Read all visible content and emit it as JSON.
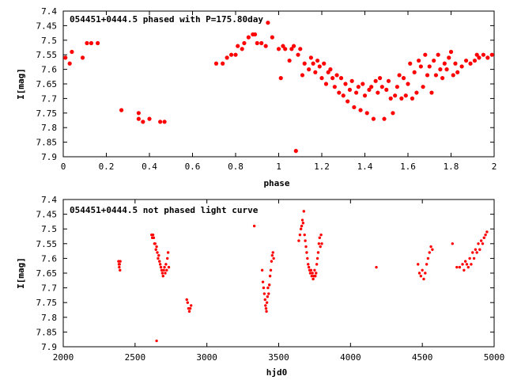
{
  "colors": {
    "series": "#ff0000",
    "axis": "#000000",
    "background": "#ffffff"
  },
  "chart_data": [
    {
      "type": "scatter",
      "title": "054451+0444.5 phased with P=175.80day",
      "xlabel": "phase",
      "ylabel": "I[mag]",
      "xlim": [
        0,
        2
      ],
      "ylim": [
        7.4,
        7.9
      ],
      "y_inverted": true,
      "grid": false,
      "legend": "none",
      "marker": "large-dot",
      "xticks": [
        0,
        0.2,
        0.4,
        0.6,
        0.8,
        1,
        1.2,
        1.4,
        1.6,
        1.8,
        2
      ],
      "xtick_labels": [
        "0",
        "0.2",
        "0.4",
        "0.6",
        "0.8",
        "1",
        "1.2",
        "1.4",
        "1.6",
        "1.8",
        "2"
      ],
      "yticks": [
        7.4,
        7.45,
        7.5,
        7.55,
        7.6,
        7.65,
        7.7,
        7.75,
        7.8,
        7.85,
        7.9
      ],
      "ytick_labels": [
        "7.4",
        "7.45",
        "7.5",
        "7.55",
        "7.6",
        "7.65",
        "7.7",
        "7.75",
        "7.8",
        "7.85",
        "7.9"
      ],
      "points": [
        [
          0.01,
          7.56
        ],
        [
          0.03,
          7.58
        ],
        [
          0.04,
          7.54
        ],
        [
          0.09,
          7.56
        ],
        [
          0.11,
          7.51
        ],
        [
          0.13,
          7.51
        ],
        [
          0.16,
          7.51
        ],
        [
          0.27,
          7.74
        ],
        [
          0.35,
          7.75
        ],
        [
          0.35,
          7.77
        ],
        [
          0.37,
          7.78
        ],
        [
          0.4,
          7.77
        ],
        [
          0.45,
          7.78
        ],
        [
          0.47,
          7.78
        ],
        [
          0.71,
          7.58
        ],
        [
          0.74,
          7.58
        ],
        [
          0.76,
          7.56
        ],
        [
          0.78,
          7.55
        ],
        [
          0.8,
          7.55
        ],
        [
          0.81,
          7.52
        ],
        [
          0.83,
          7.53
        ],
        [
          0.84,
          7.51
        ],
        [
          0.86,
          7.49
        ],
        [
          0.88,
          7.48
        ],
        [
          0.89,
          7.48
        ],
        [
          0.9,
          7.51
        ],
        [
          0.92,
          7.51
        ],
        [
          0.94,
          7.52
        ],
        [
          0.95,
          7.44
        ],
        [
          0.97,
          7.49
        ],
        [
          1.0,
          7.53
        ],
        [
          1.01,
          7.63
        ],
        [
          1.02,
          7.52
        ],
        [
          1.03,
          7.53
        ],
        [
          1.05,
          7.57
        ],
        [
          1.06,
          7.53
        ],
        [
          1.07,
          7.52
        ],
        [
          1.08,
          7.88
        ],
        [
          1.09,
          7.55
        ],
        [
          1.1,
          7.53
        ],
        [
          1.11,
          7.62
        ],
        [
          1.12,
          7.58
        ],
        [
          1.14,
          7.6
        ],
        [
          1.15,
          7.56
        ],
        [
          1.16,
          7.58
        ],
        [
          1.17,
          7.61
        ],
        [
          1.18,
          7.57
        ],
        [
          1.19,
          7.59
        ],
        [
          1.2,
          7.63
        ],
        [
          1.21,
          7.58
        ],
        [
          1.22,
          7.65
        ],
        [
          1.23,
          7.61
        ],
        [
          1.24,
          7.6
        ],
        [
          1.25,
          7.63
        ],
        [
          1.26,
          7.66
        ],
        [
          1.27,
          7.62
        ],
        [
          1.28,
          7.68
        ],
        [
          1.29,
          7.63
        ],
        [
          1.3,
          7.69
        ],
        [
          1.31,
          7.65
        ],
        [
          1.32,
          7.71
        ],
        [
          1.33,
          7.67
        ],
        [
          1.34,
          7.64
        ],
        [
          1.35,
          7.73
        ],
        [
          1.36,
          7.68
        ],
        [
          1.37,
          7.66
        ],
        [
          1.38,
          7.74
        ],
        [
          1.39,
          7.65
        ],
        [
          1.4,
          7.69
        ],
        [
          1.41,
          7.75
        ],
        [
          1.42,
          7.67
        ],
        [
          1.43,
          7.66
        ],
        [
          1.44,
          7.77
        ],
        [
          1.45,
          7.64
        ],
        [
          1.46,
          7.68
        ],
        [
          1.47,
          7.63
        ],
        [
          1.48,
          7.66
        ],
        [
          1.49,
          7.77
        ],
        [
          1.5,
          7.67
        ],
        [
          1.51,
          7.64
        ],
        [
          1.52,
          7.7
        ],
        [
          1.53,
          7.75
        ],
        [
          1.54,
          7.69
        ],
        [
          1.55,
          7.66
        ],
        [
          1.56,
          7.62
        ],
        [
          1.57,
          7.7
        ],
        [
          1.58,
          7.63
        ],
        [
          1.59,
          7.69
        ],
        [
          1.6,
          7.65
        ],
        [
          1.61,
          7.58
        ],
        [
          1.62,
          7.7
        ],
        [
          1.63,
          7.61
        ],
        [
          1.64,
          7.68
        ],
        [
          1.65,
          7.57
        ],
        [
          1.66,
          7.59
        ],
        [
          1.67,
          7.66
        ],
        [
          1.68,
          7.55
        ],
        [
          1.69,
          7.62
        ],
        [
          1.7,
          7.59
        ],
        [
          1.71,
          7.68
        ],
        [
          1.72,
          7.57
        ],
        [
          1.73,
          7.62
        ],
        [
          1.74,
          7.55
        ],
        [
          1.75,
          7.6
        ],
        [
          1.76,
          7.63
        ],
        [
          1.77,
          7.58
        ],
        [
          1.78,
          7.6
        ],
        [
          1.79,
          7.56
        ],
        [
          1.8,
          7.54
        ],
        [
          1.81,
          7.62
        ],
        [
          1.82,
          7.58
        ],
        [
          1.83,
          7.61
        ],
        [
          1.85,
          7.59
        ],
        [
          1.87,
          7.57
        ],
        [
          1.89,
          7.58
        ],
        [
          1.91,
          7.57
        ],
        [
          1.92,
          7.55
        ],
        [
          1.93,
          7.56
        ],
        [
          1.95,
          7.55
        ],
        [
          1.97,
          7.56
        ],
        [
          1.99,
          7.55
        ]
      ]
    },
    {
      "type": "scatter",
      "title": "054451+0444.5 not phased light curve",
      "xlabel": "hjd0",
      "ylabel": "I[mag]",
      "xlim": [
        2000,
        5000
      ],
      "ylim": [
        7.4,
        7.9
      ],
      "y_inverted": true,
      "grid": false,
      "legend": "none",
      "marker": "small-dot",
      "xticks": [
        2000,
        2500,
        3000,
        3500,
        4000,
        4500,
        5000
      ],
      "xtick_labels": [
        "2000",
        "2500",
        "3000",
        "3500",
        "4000",
        "4500",
        "5000"
      ],
      "yticks": [
        7.4,
        7.45,
        7.5,
        7.55,
        7.6,
        7.65,
        7.7,
        7.75,
        7.8,
        7.85,
        7.9
      ],
      "ytick_labels": [
        "7.4",
        "7.45",
        "7.5",
        "7.55",
        "7.6",
        "7.65",
        "7.7",
        "7.75",
        "7.8",
        "7.85",
        "7.9"
      ],
      "points": [
        [
          2385,
          7.61
        ],
        [
          2388,
          7.62
        ],
        [
          2390,
          7.63
        ],
        [
          2392,
          7.62
        ],
        [
          2395,
          7.64
        ],
        [
          2397,
          7.61
        ],
        [
          2615,
          7.52
        ],
        [
          2620,
          7.53
        ],
        [
          2625,
          7.52
        ],
        [
          2630,
          7.53
        ],
        [
          2635,
          7.55
        ],
        [
          2640,
          7.55
        ],
        [
          2645,
          7.57
        ],
        [
          2650,
          7.56
        ],
        [
          2655,
          7.58
        ],
        [
          2660,
          7.6
        ],
        [
          2665,
          7.59
        ],
        [
          2670,
          7.61
        ],
        [
          2675,
          7.62
        ],
        [
          2680,
          7.63
        ],
        [
          2685,
          7.64
        ],
        [
          2690,
          7.65
        ],
        [
          2695,
          7.66
        ],
        [
          2700,
          7.64
        ],
        [
          2705,
          7.63
        ],
        [
          2710,
          7.65
        ],
        [
          2715,
          7.62
        ],
        [
          2720,
          7.64
        ],
        [
          2725,
          7.6
        ],
        [
          2730,
          7.58
        ],
        [
          2735,
          7.63
        ],
        [
          2650,
          7.88
        ],
        [
          2860,
          7.74
        ],
        [
          2866,
          7.75
        ],
        [
          2872,
          7.77
        ],
        [
          2878,
          7.78
        ],
        [
          2884,
          7.77
        ],
        [
          2890,
          7.76
        ],
        [
          3330,
          7.49
        ],
        [
          3385,
          7.64
        ],
        [
          3390,
          7.68
        ],
        [
          3395,
          7.7
        ],
        [
          3400,
          7.72
        ],
        [
          3405,
          7.74
        ],
        [
          3408,
          7.76
        ],
        [
          3412,
          7.77
        ],
        [
          3415,
          7.78
        ],
        [
          3418,
          7.75
        ],
        [
          3422,
          7.73
        ],
        [
          3425,
          7.7
        ],
        [
          3430,
          7.72
        ],
        [
          3435,
          7.69
        ],
        [
          3440,
          7.66
        ],
        [
          3445,
          7.64
        ],
        [
          3450,
          7.61
        ],
        [
          3455,
          7.59
        ],
        [
          3460,
          7.58
        ],
        [
          3465,
          7.6
        ],
        [
          3640,
          7.54
        ],
        [
          3648,
          7.52
        ],
        [
          3655,
          7.5
        ],
        [
          3660,
          7.49
        ],
        [
          3665,
          7.47
        ],
        [
          3670,
          7.48
        ],
        [
          3675,
          7.44
        ],
        [
          3680,
          7.52
        ],
        [
          3685,
          7.54
        ],
        [
          3690,
          7.56
        ],
        [
          3695,
          7.58
        ],
        [
          3700,
          7.6
        ],
        [
          3705,
          7.62
        ],
        [
          3710,
          7.63
        ],
        [
          3715,
          7.64
        ],
        [
          3720,
          7.65
        ],
        [
          3725,
          7.64
        ],
        [
          3730,
          7.66
        ],
        [
          3735,
          7.65
        ],
        [
          3740,
          7.67
        ],
        [
          3745,
          7.66
        ],
        [
          3750,
          7.64
        ],
        [
          3755,
          7.66
        ],
        [
          3760,
          7.65
        ],
        [
          3765,
          7.62
        ],
        [
          3770,
          7.6
        ],
        [
          3775,
          7.58
        ],
        [
          3780,
          7.55
        ],
        [
          3785,
          7.53
        ],
        [
          3790,
          7.56
        ],
        [
          3795,
          7.52
        ],
        [
          3800,
          7.55
        ],
        [
          4180,
          7.63
        ],
        [
          4470,
          7.62
        ],
        [
          4480,
          7.65
        ],
        [
          4490,
          7.66
        ],
        [
          4500,
          7.64
        ],
        [
          4510,
          7.67
        ],
        [
          4520,
          7.65
        ],
        [
          4530,
          7.62
        ],
        [
          4540,
          7.6
        ],
        [
          4550,
          7.58
        ],
        [
          4560,
          7.56
        ],
        [
          4570,
          7.57
        ],
        [
          4710,
          7.55
        ],
        [
          4740,
          7.63
        ],
        [
          4760,
          7.63
        ],
        [
          4780,
          7.62
        ],
        [
          4790,
          7.64
        ],
        [
          4800,
          7.61
        ],
        [
          4810,
          7.62
        ],
        [
          4820,
          7.63
        ],
        [
          4830,
          7.6
        ],
        [
          4840,
          7.62
        ],
        [
          4850,
          7.58
        ],
        [
          4860,
          7.6
        ],
        [
          4870,
          7.57
        ],
        [
          4880,
          7.58
        ],
        [
          4890,
          7.55
        ],
        [
          4900,
          7.57
        ],
        [
          4910,
          7.54
        ],
        [
          4920,
          7.55
        ],
        [
          4930,
          7.53
        ],
        [
          4940,
          7.52
        ],
        [
          4950,
          7.51
        ]
      ]
    }
  ]
}
